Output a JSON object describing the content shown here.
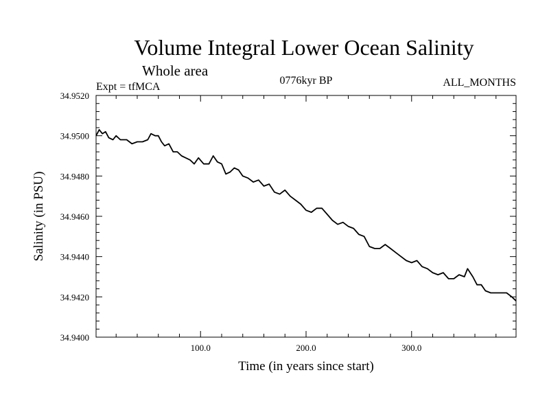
{
  "chart_data": {
    "type": "line",
    "title": "Volume Integral Lower Ocean Salinity",
    "subtitle": "Whole area",
    "annotation_left": "Expt = tfMCA",
    "annotation_center": "0776kyr BP",
    "annotation_right": "ALL_MONTHS",
    "xlabel": "Time (in years since start)",
    "ylabel": "Salinity (in PSU)",
    "xlim": [
      1,
      399
    ],
    "ylim": [
      34.94,
      34.952
    ],
    "x_ticks": [
      100,
      200,
      300
    ],
    "x_tick_labels": [
      "100.0",
      "200.0",
      "300.0"
    ],
    "y_ticks": [
      34.94,
      34.942,
      34.944,
      34.946,
      34.948,
      34.95,
      34.952
    ],
    "y_tick_labels": [
      "34.9400",
      "34.9420",
      "34.9440",
      "34.9460",
      "34.9480",
      "34.9500",
      "34.9520"
    ],
    "line_color": "#000000",
    "series": [
      {
        "x": [
          1,
          4,
          7,
          10,
          13,
          17,
          20,
          24,
          30,
          35,
          40,
          45,
          50,
          53,
          57,
          60,
          63,
          66,
          70,
          74,
          78,
          82,
          86,
          90,
          94,
          98,
          103,
          108,
          112,
          116,
          120,
          124,
          128,
          132,
          136,
          140,
          145,
          150,
          155,
          160,
          165,
          170,
          175,
          180,
          185,
          190,
          195,
          200,
          205,
          210,
          215,
          220,
          225,
          230,
          235,
          240,
          245,
          250,
          255,
          260,
          265,
          270,
          275,
          280,
          285,
          290,
          295,
          300,
          305,
          310,
          315,
          320,
          325,
          330,
          335,
          340,
          345,
          350,
          353,
          358,
          362,
          366,
          370,
          375,
          380,
          385,
          390,
          395,
          399
        ],
        "y": [
          34.95,
          34.9503,
          34.9501,
          34.9502,
          34.9499,
          34.9498,
          34.95,
          34.9498,
          34.9498,
          34.9496,
          34.9497,
          34.9497,
          34.9498,
          34.9501,
          34.95,
          34.95,
          34.9497,
          34.9495,
          34.9496,
          34.9492,
          34.9492,
          34.949,
          34.9489,
          34.9488,
          34.9486,
          34.9489,
          34.9486,
          34.9486,
          34.949,
          34.9487,
          34.9486,
          34.9481,
          34.9482,
          34.9484,
          34.9483,
          34.948,
          34.9479,
          34.9477,
          34.9478,
          34.9475,
          34.9476,
          34.9472,
          34.9471,
          34.9473,
          34.947,
          34.9468,
          34.9466,
          34.9463,
          34.9462,
          34.9464,
          34.9464,
          34.9461,
          34.9458,
          34.9456,
          34.9457,
          34.9455,
          34.9454,
          34.9451,
          34.945,
          34.9445,
          34.9444,
          34.9444,
          34.9446,
          34.9444,
          34.9442,
          34.944,
          34.9438,
          34.9437,
          34.9438,
          34.9435,
          34.9434,
          34.9432,
          34.9431,
          34.9432,
          34.9429,
          34.9429,
          34.9431,
          34.943,
          34.9434,
          34.943,
          34.9426,
          34.9426,
          34.9423,
          34.9422,
          34.9422,
          34.9422,
          34.9422,
          34.942,
          34.9418
        ]
      }
    ]
  }
}
